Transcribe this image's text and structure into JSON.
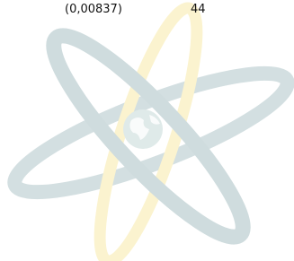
{
  "row": {
    "value": "(0,00837)",
    "count": "44"
  }
}
